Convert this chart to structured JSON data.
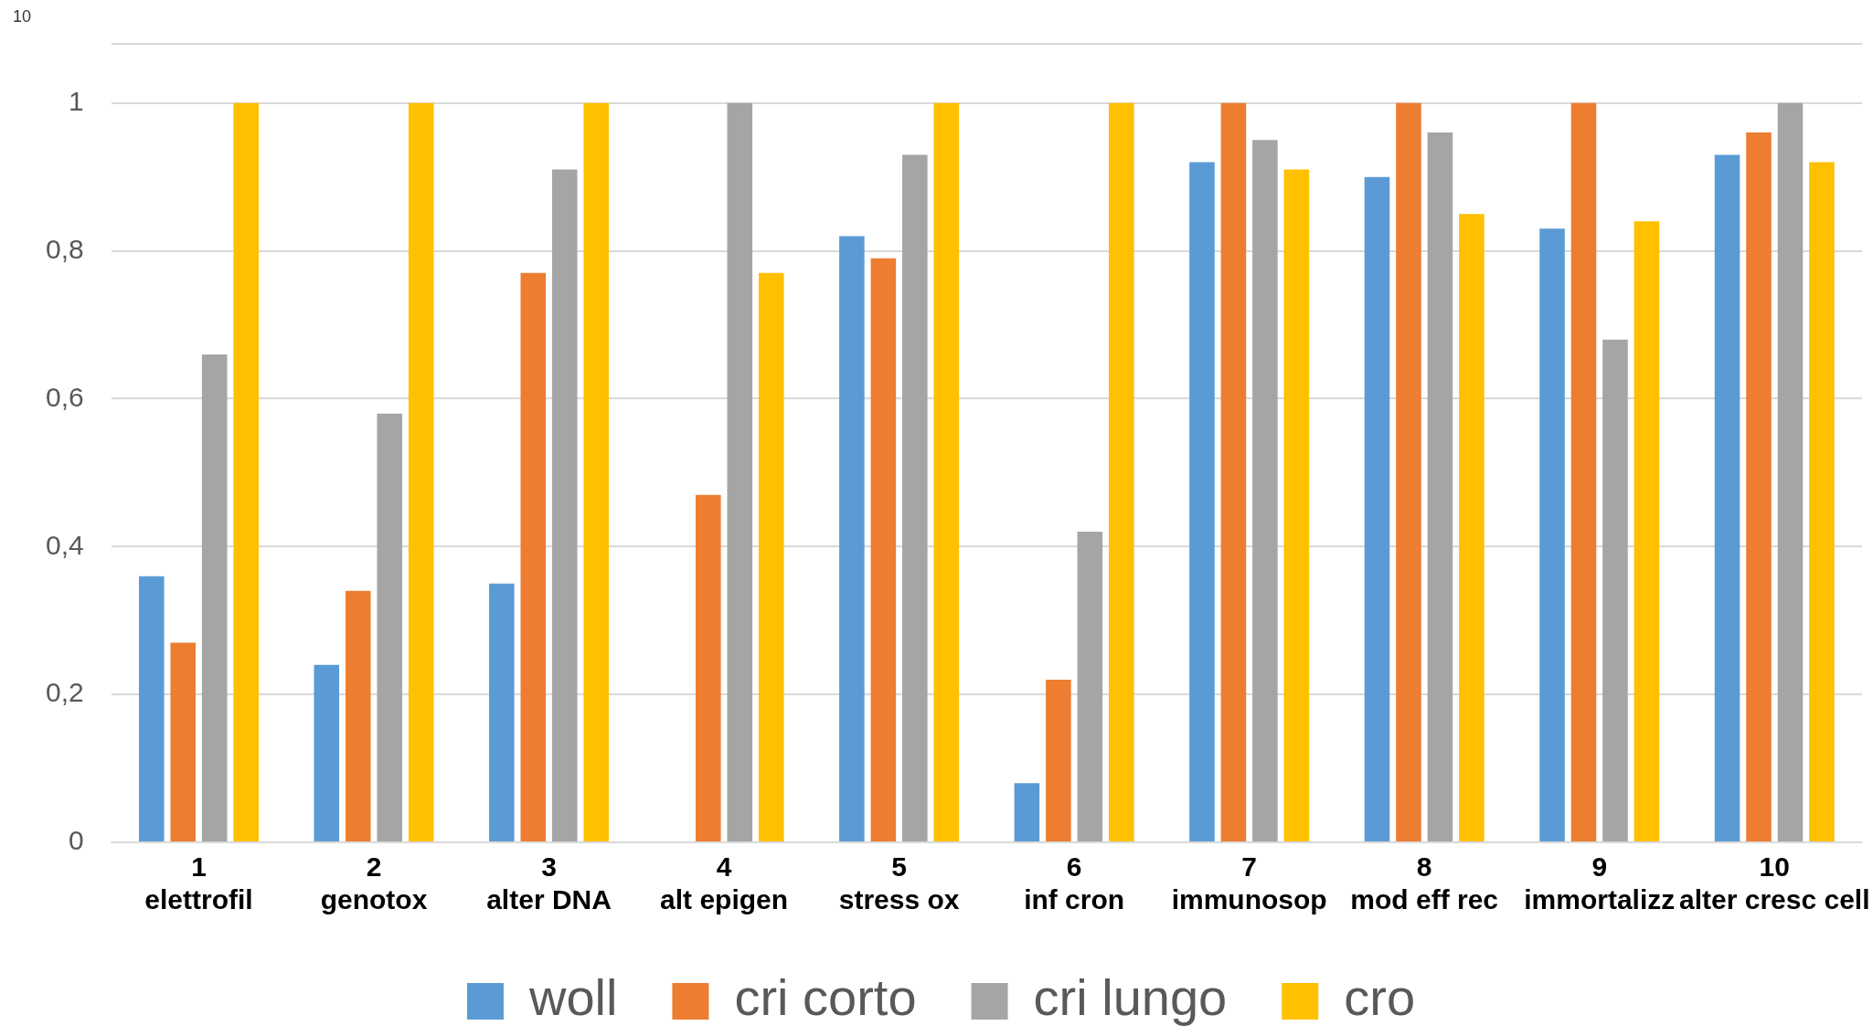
{
  "chart_data": {
    "type": "bar",
    "categories": [
      "1\nelettrofil",
      "2\ngenotox",
      "3\nalter DNA",
      "4\nalt epigen",
      "5\nstress ox",
      "6\ninf cron",
      "7\nimmunosop",
      "8\nmod eff rec",
      "9\nimmortalizz",
      "10\nalter cresc cell"
    ],
    "series": [
      {
        "name": "woll",
        "color": "#5b9bd5",
        "values": [
          0.36,
          0.24,
          0.35,
          0,
          0.82,
          0.08,
          0.92,
          0.9,
          0.83,
          0.93
        ]
      },
      {
        "name": "cri corto",
        "color": "#ed7d31",
        "values": [
          0.27,
          0.34,
          0.77,
          0.47,
          0.79,
          0.22,
          1,
          1,
          1,
          0.96
        ]
      },
      {
        "name": "cri lungo",
        "color": "#a5a5a5",
        "values": [
          0.66,
          0.58,
          0.91,
          1,
          0.93,
          0.42,
          0.95,
          0.96,
          0.68,
          1
        ]
      },
      {
        "name": "cro",
        "color": "#ffc000",
        "values": [
          1,
          1,
          1,
          0.77,
          1,
          1,
          0.91,
          0.85,
          0.84,
          0.92
        ]
      }
    ],
    "ylim": [
      0,
      1.08
    ],
    "yticks": [
      0,
      {
        "value": 0.2,
        "label": "0,2"
      },
      {
        "value": 0.4,
        "label": "0,4"
      },
      {
        "value": 0.6,
        "label": "0,6"
      },
      {
        "value": 0.8,
        "label": "0,8"
      },
      1,
      {
        "value": 1.08,
        "label": null
      }
    ],
    "grid": "y",
    "legend": "bottom",
    "annotations": [
      "10"
    ]
  }
}
